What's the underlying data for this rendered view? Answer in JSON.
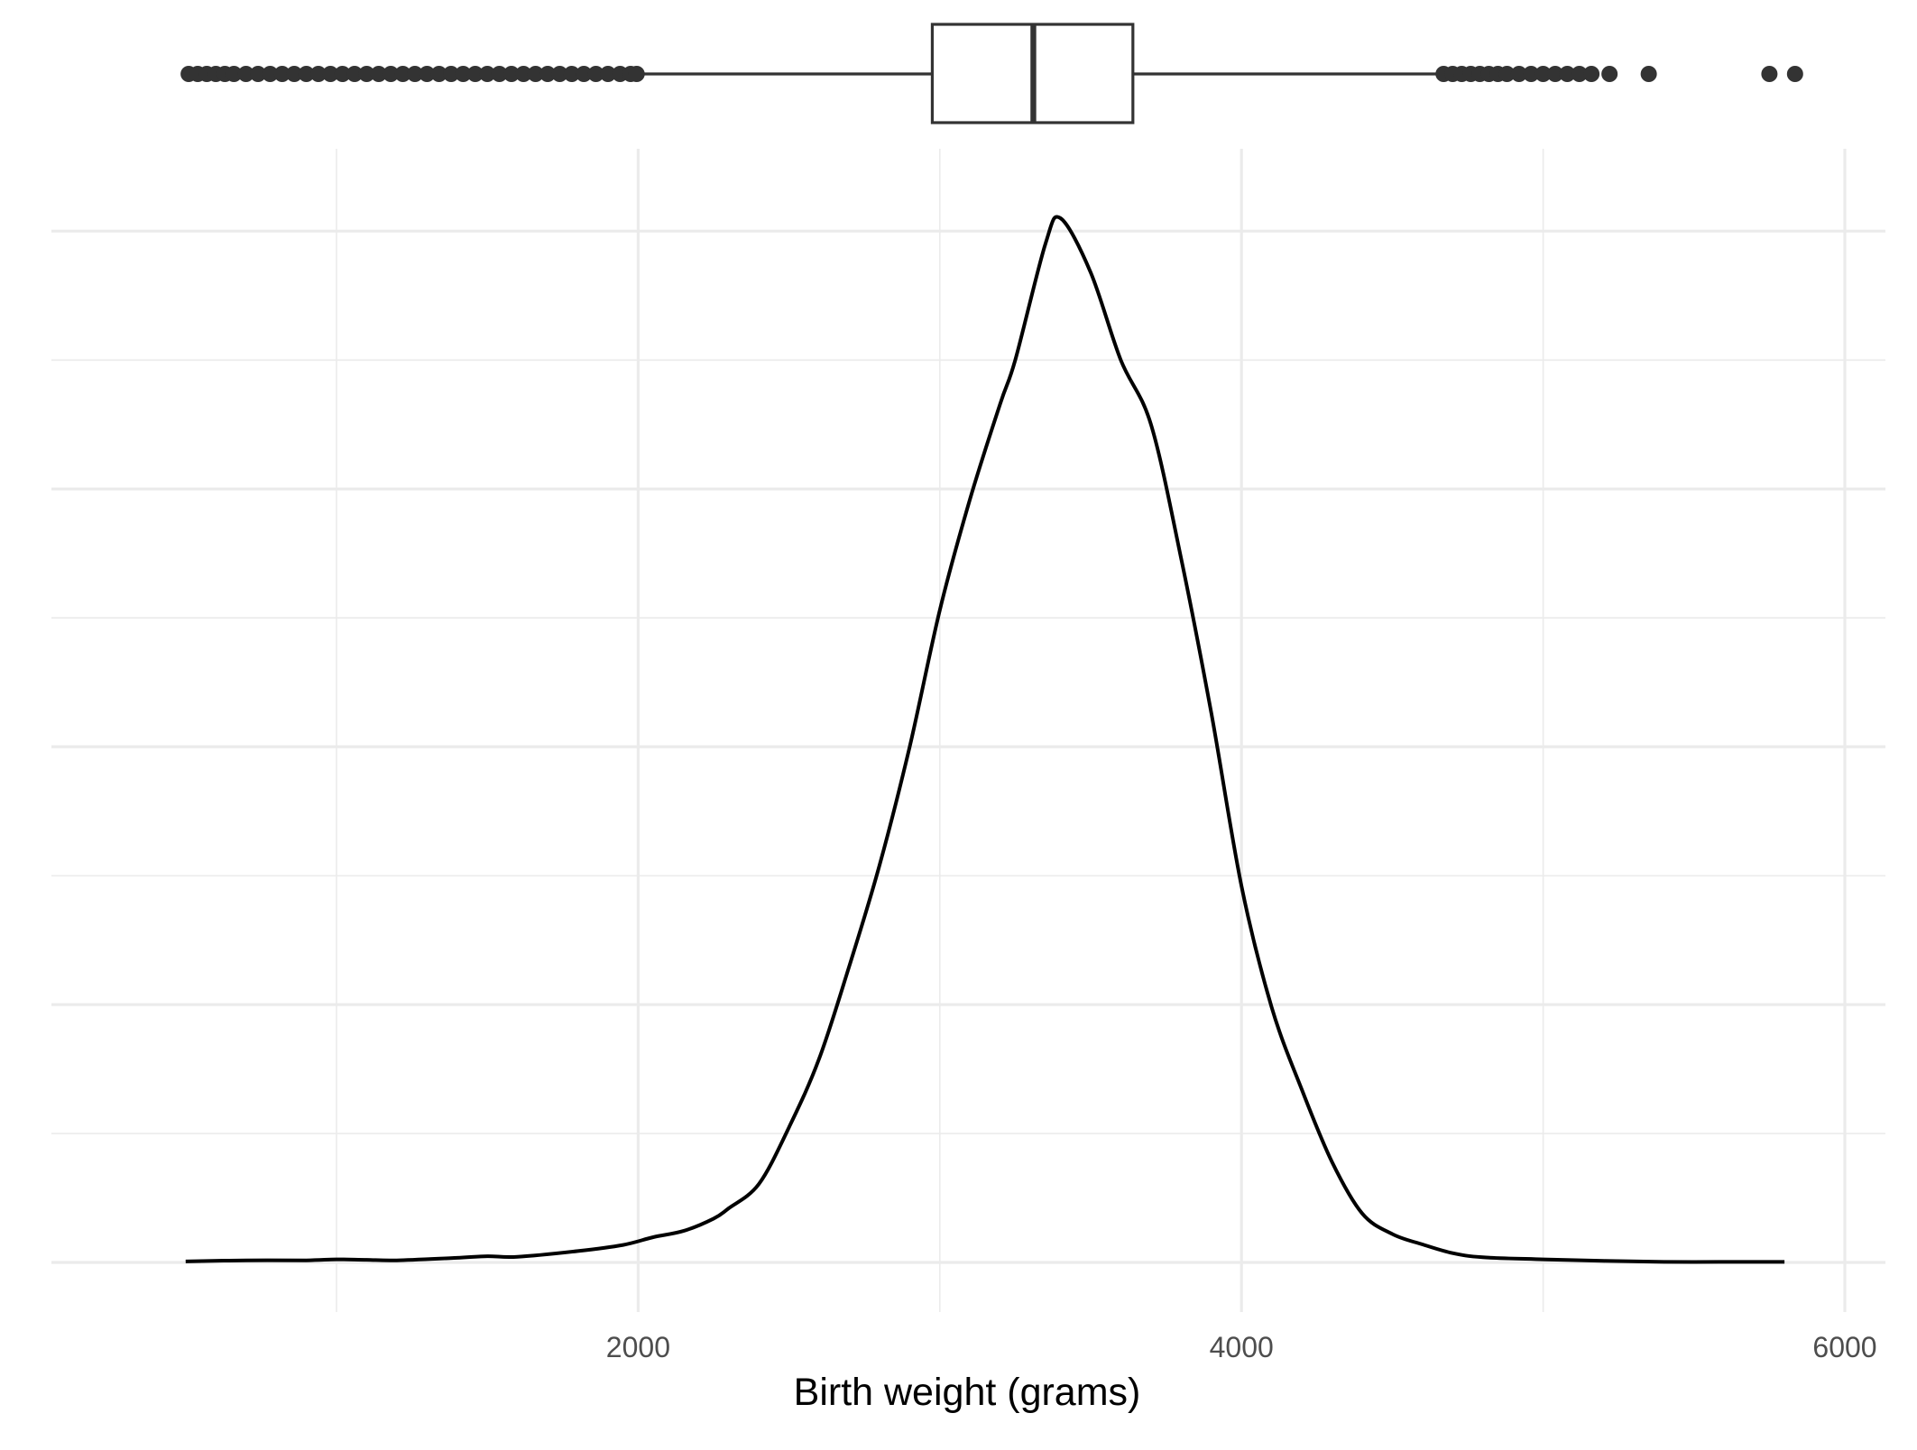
{
  "chart_data": {
    "type": "line",
    "title": "",
    "xlabel": "Birth weight (grams)",
    "ylabel": "",
    "xlim": [
      227,
      6050
    ],
    "x_tick_labels": [
      2000,
      4000,
      6000
    ],
    "x_minor_breaks": [
      1000,
      3000,
      5000
    ],
    "y_ticks_shown": false,
    "grid": true,
    "colors": {
      "line": "#000000",
      "box": "#333333",
      "grid": "#ebebeb",
      "axis_text": "#4d4d4d"
    },
    "series": [
      {
        "x": [
          500,
          700,
          900,
          1000,
          1100,
          1200,
          1400,
          1500,
          1600,
          1800,
          1950,
          2050,
          2150,
          2250,
          2300,
          2400,
          2500,
          2600,
          2700,
          2800,
          2900,
          3000,
          3100,
          3200,
          3250,
          3350,
          3400,
          3500,
          3600,
          3700,
          3800,
          3900,
          4000,
          4100,
          4200,
          4300,
          4400,
          4500,
          4600,
          4700,
          4800,
          5000,
          5200,
          5400,
          5600,
          5800
        ],
        "y": [
          2e-05,
          4e-05,
          4e-05,
          6e-05,
          5e-05,
          4e-05,
          9e-05,
          0.00012,
          0.00011,
          0.00022,
          0.00034,
          0.00049,
          0.00061,
          0.00085,
          0.00105,
          0.00152,
          0.00262,
          0.00395,
          0.00575,
          0.0077,
          0.01,
          0.01265,
          0.0148,
          0.01665,
          0.0175,
          0.01975,
          0.02025,
          0.0192,
          0.0175,
          0.01625,
          0.01365,
          0.01065,
          0.0073,
          0.00495,
          0.00335,
          0.00195,
          0.00095,
          0.00055,
          0.00035,
          0.00018,
          0.0001,
          6e-05,
          3e-05,
          1e-05,
          1e-05,
          1e-05
        ]
      }
    ],
    "boxplot": {
      "q1": 2975,
      "median": 3310,
      "q3": 3640,
      "whisker_low": 2000,
      "whisker_high": 4645,
      "outliers": [
        510,
        540,
        570,
        600,
        630,
        660,
        700,
        740,
        780,
        820,
        860,
        900,
        940,
        980,
        1020,
        1060,
        1100,
        1140,
        1180,
        1220,
        1260,
        1300,
        1340,
        1380,
        1420,
        1460,
        1500,
        1540,
        1580,
        1620,
        1660,
        1700,
        1740,
        1780,
        1820,
        1860,
        1900,
        1940,
        1975,
        1995,
        4670,
        4700,
        4730,
        4760,
        4790,
        4820,
        4850,
        4880,
        4920,
        4960,
        5000,
        5040,
        5080,
        5120,
        5160,
        5220,
        5350,
        5750,
        5835
      ]
    }
  }
}
